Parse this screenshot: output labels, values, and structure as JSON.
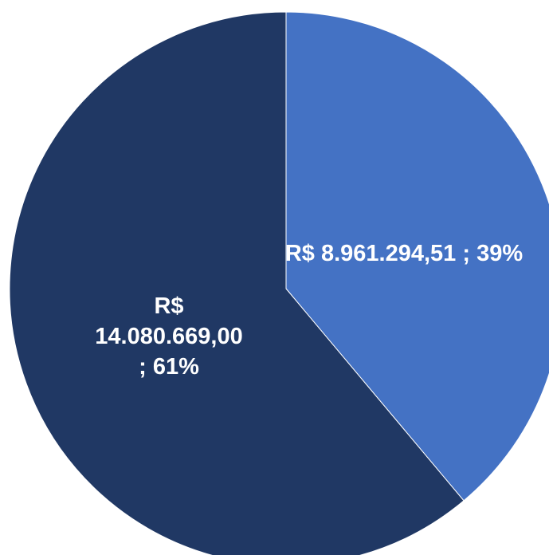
{
  "chart_data": {
    "type": "pie",
    "values": [
      8961294.51,
      14080669.0
    ],
    "value_labels": [
      "R$ 8.961.294,51 ; 39%",
      "R$ 14.080.669,00 ; 61%"
    ],
    "colors": [
      "#4472c4",
      "#203864"
    ]
  }
}
